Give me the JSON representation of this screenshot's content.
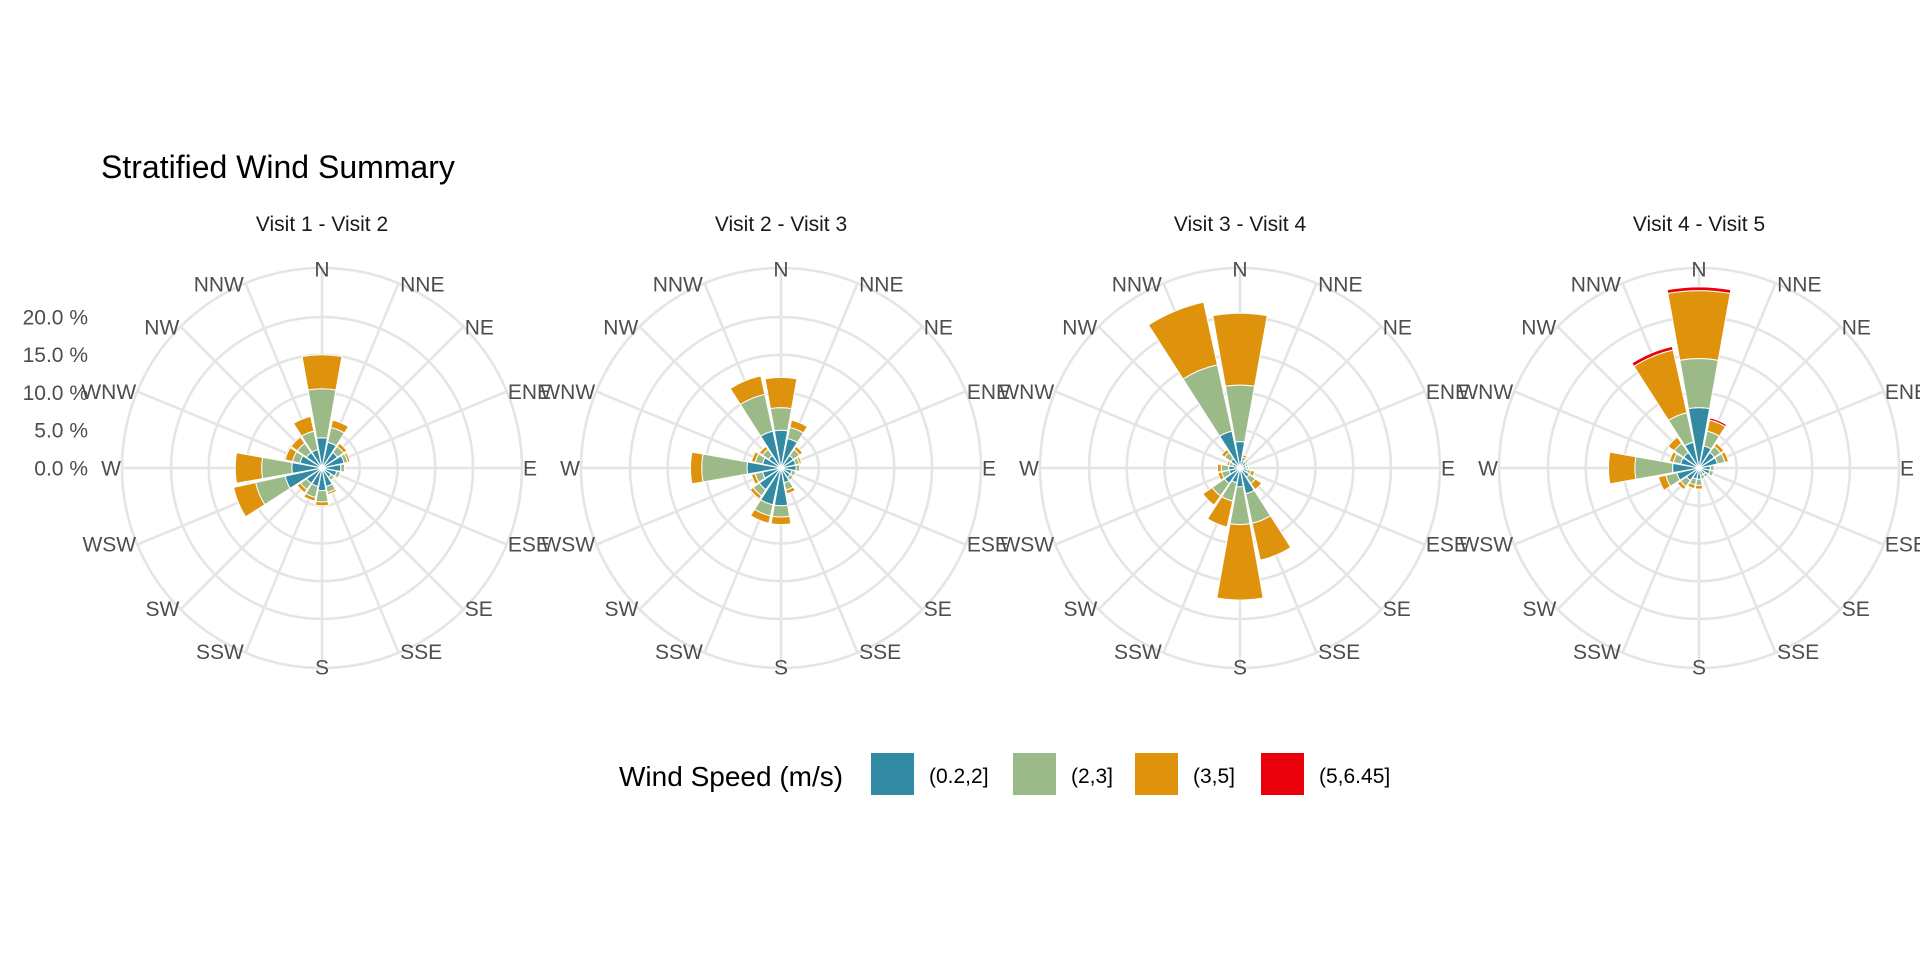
{
  "chart_data": {
    "type": "windrose",
    "title": "Stratified Wind Summary",
    "r_ticks": [
      0,
      5,
      10,
      15,
      20
    ],
    "r_tick_labels": [
      "0.0 %",
      "5.0 %",
      "10.0 %",
      "15.0 %",
      "20.0 %"
    ],
    "rlim": [
      0,
      26.5
    ],
    "directions": [
      "N",
      "NNE",
      "NE",
      "ENE",
      "E",
      "ESE",
      "SE",
      "SSE",
      "S",
      "SSW",
      "SW",
      "WSW",
      "W",
      "WNW",
      "NW",
      "NNW"
    ],
    "legend": {
      "title": "Wind Speed (m/s)",
      "position": "bottom",
      "bins": [
        {
          "label": "(0.2,2]",
          "color": "#328ba3"
        },
        {
          "label": "(2,3]",
          "color": "#9cba88"
        },
        {
          "label": "(3,5]",
          "color": "#df930d"
        },
        {
          "label": "(5,6.45]",
          "color": "#e8000b"
        }
      ]
    },
    "panels": [
      {
        "title": "Visit 1 - Visit 2",
        "values": [
          [
            4.0,
            6.5,
            4.5,
            0
          ],
          [
            3.5,
            2.0,
            1.0,
            0
          ],
          [
            2.5,
            1.0,
            0.5,
            0
          ],
          [
            3.0,
            0.5,
            0.3,
            0
          ],
          [
            2.5,
            0.5,
            0,
            0
          ],
          [
            2.0,
            0.5,
            0,
            0
          ],
          [
            1.5,
            0.5,
            0,
            0
          ],
          [
            2.5,
            0.8,
            0.3,
            0
          ],
          [
            3.0,
            1.5,
            0.5,
            0
          ],
          [
            2.5,
            1.5,
            0.5,
            0
          ],
          [
            2.5,
            1.0,
            0.5,
            0
          ],
          [
            5.0,
            4.0,
            3.0,
            0
          ],
          [
            4.0,
            4.0,
            3.5,
            0
          ],
          [
            3.0,
            1.0,
            1.0,
            0
          ],
          [
            2.5,
            1.5,
            1.0,
            0
          ],
          [
            2.5,
            2.5,
            2.0,
            0
          ]
        ]
      },
      {
        "title": "Visit 2 - Visit 3",
        "values": [
          [
            5.0,
            3.0,
            4.0,
            0
          ],
          [
            4.0,
            1.5,
            1.0,
            0
          ],
          [
            2.0,
            1.0,
            0.5,
            0
          ],
          [
            2.0,
            0.5,
            0.3,
            0
          ],
          [
            2.0,
            0.5,
            0,
            0
          ],
          [
            1.5,
            0.5,
            0,
            0
          ],
          [
            1.5,
            0.5,
            0,
            0
          ],
          [
            2.0,
            1.0,
            0.5,
            0
          ],
          [
            5.0,
            1.5,
            1.0,
            0
          ],
          [
            5.0,
            1.5,
            1.0,
            0
          ],
          [
            3.5,
            1.0,
            0.5,
            0
          ],
          [
            2.5,
            1.0,
            0.5,
            0
          ],
          [
            4.5,
            6.0,
            1.5,
            0
          ],
          [
            2.5,
            1.0,
            0.5,
            0
          ],
          [
            2.0,
            1.0,
            0.5,
            0
          ],
          [
            5.0,
            5.0,
            2.5,
            0
          ]
        ]
      },
      {
        "title": "Visit 3 - Visit 4",
        "values": [
          [
            3.5,
            7.5,
            9.5,
            0
          ],
          [
            1.0,
            0.5,
            0.3,
            0
          ],
          [
            1.0,
            0.3,
            0.2,
            0
          ],
          [
            0.8,
            0.3,
            0,
            0
          ],
          [
            0.8,
            0.3,
            0,
            0
          ],
          [
            1.0,
            0.5,
            0.5,
            0
          ],
          [
            1.5,
            1.0,
            1.0,
            0
          ],
          [
            3.5,
            4.0,
            5.0,
            0
          ],
          [
            2.5,
            5.0,
            10.0,
            0
          ],
          [
            2.0,
            2.5,
            3.5,
            0
          ],
          [
            2.5,
            2.0,
            1.5,
            0
          ],
          [
            1.5,
            1.0,
            0.5,
            0
          ],
          [
            1.5,
            1.0,
            0.5,
            0
          ],
          [
            1.0,
            0.5,
            0.3,
            0
          ],
          [
            1.5,
            1.0,
            0.5,
            0
          ],
          [
            5.0,
            9.0,
            8.5,
            0
          ]
        ]
      },
      {
        "title": "Visit 4 - Visit 5",
        "values": [
          [
            8.0,
            6.5,
            9.0,
            0.5
          ],
          [
            3.0,
            2.0,
            1.5,
            0.3
          ],
          [
            2.5,
            1.0,
            0.5,
            0
          ],
          [
            2.5,
            1.0,
            0.5,
            0
          ],
          [
            1.5,
            0.5,
            0,
            0
          ],
          [
            1.5,
            0.5,
            0,
            0
          ],
          [
            1.0,
            0.5,
            0,
            0
          ],
          [
            1.0,
            0.5,
            0,
            0
          ],
          [
            1.5,
            0.8,
            0.5,
            0
          ],
          [
            1.5,
            0.8,
            0.5,
            0
          ],
          [
            2.0,
            1.0,
            0.5,
            0
          ],
          [
            3.0,
            1.5,
            1.0,
            0
          ],
          [
            3.5,
            5.0,
            3.5,
            0
          ],
          [
            2.5,
            1.0,
            0.5,
            0
          ],
          [
            2.5,
            1.5,
            1.0,
            0
          ],
          [
            3.5,
            4.0,
            8.5,
            0.5
          ]
        ]
      }
    ]
  }
}
